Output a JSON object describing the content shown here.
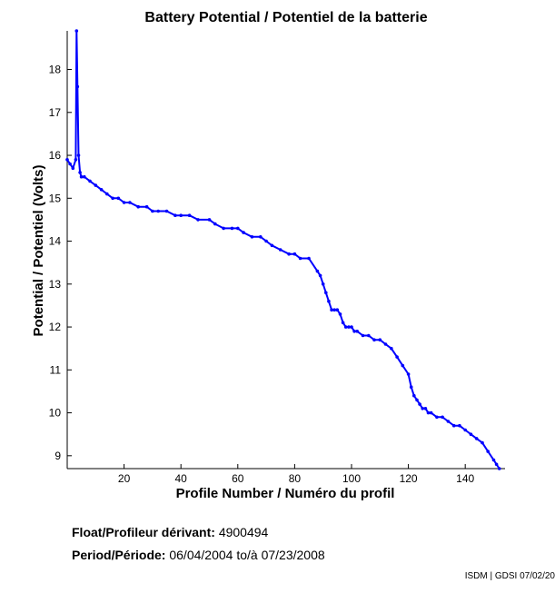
{
  "chart_data": {
    "type": "line",
    "title": "Battery Potential / Potentiel de la batterie",
    "xlabel": "Profile Number / Numéro du profil",
    "ylabel": "Potential / Potentiel (Volts)",
    "xlim": [
      0,
      154
    ],
    "ylim": [
      8.7,
      18.9
    ],
    "xticks": [
      20,
      40,
      60,
      80,
      100,
      120,
      140
    ],
    "yticks": [
      9,
      10,
      11,
      12,
      13,
      14,
      15,
      16,
      17,
      18
    ],
    "grid": false,
    "line_color": "#0000ff",
    "x": [
      0,
      1,
      2,
      3,
      3.3,
      3.6,
      4,
      4.5,
      5,
      6,
      8,
      10,
      12,
      14,
      16,
      18,
      20,
      22,
      25,
      28,
      30,
      32,
      35,
      38,
      40,
      43,
      46,
      50,
      52,
      55,
      58,
      60,
      62,
      65,
      68,
      70,
      72,
      75,
      78,
      80,
      82,
      85,
      88,
      89,
      90,
      91,
      92,
      93,
      94,
      95,
      96,
      97,
      98,
      99,
      100,
      101,
      102,
      104,
      106,
      108,
      110,
      112,
      114,
      116,
      118,
      120,
      121,
      122,
      123,
      124,
      125,
      126,
      127,
      128,
      130,
      132,
      134,
      136,
      138,
      140,
      142,
      144,
      146,
      148,
      150,
      151,
      152
    ],
    "y": [
      15.9,
      15.8,
      15.7,
      15.9,
      18.9,
      17.6,
      16.0,
      15.6,
      15.5,
      15.5,
      15.4,
      15.3,
      15.2,
      15.1,
      15.0,
      15.0,
      14.9,
      14.9,
      14.8,
      14.8,
      14.7,
      14.7,
      14.7,
      14.6,
      14.6,
      14.6,
      14.5,
      14.5,
      14.4,
      14.3,
      14.3,
      14.3,
      14.2,
      14.1,
      14.1,
      14.0,
      13.9,
      13.8,
      13.7,
      13.7,
      13.6,
      13.6,
      13.3,
      13.2,
      13.0,
      12.8,
      12.6,
      12.4,
      12.4,
      12.4,
      12.3,
      12.1,
      12.0,
      12.0,
      12.0,
      11.9,
      11.9,
      11.8,
      11.8,
      11.7,
      11.7,
      11.6,
      11.5,
      11.3,
      11.1,
      10.9,
      10.6,
      10.4,
      10.3,
      10.2,
      10.1,
      10.1,
      10.0,
      10.0,
      9.9,
      9.9,
      9.8,
      9.7,
      9.7,
      9.6,
      9.5,
      9.4,
      9.3,
      9.1,
      8.9,
      8.8,
      8.7
    ]
  },
  "info": {
    "float_label": "Float/Profileur dérivant:",
    "float_value": "4900494",
    "period_label": "Period/Période:",
    "period_start": "06/04/2004",
    "period_sep": "to/à",
    "period_end": "07/23/2008"
  },
  "footer": {
    "credit": "ISDM | GDSI 07/02/20"
  }
}
